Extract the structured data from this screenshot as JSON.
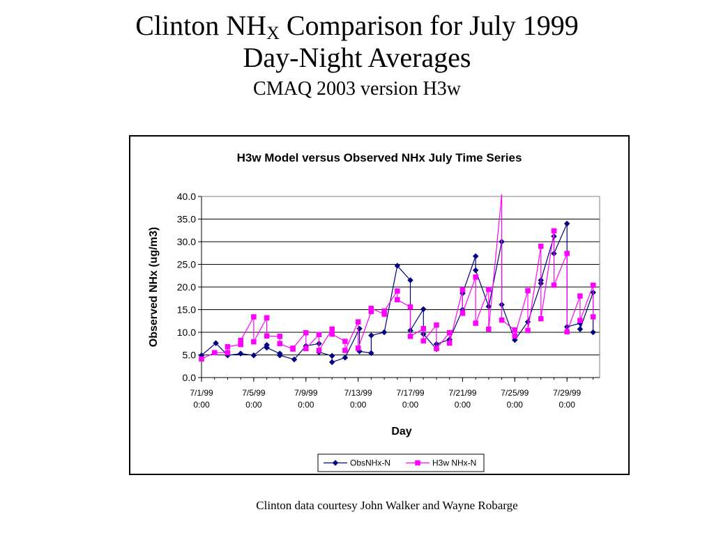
{
  "slide": {
    "title_prefix": "Clinton NH",
    "title_sub": "X",
    "title_suffix": " Comparison for July 1999",
    "subtitle1": "Day-Night Averages",
    "subtitle2": "CMAQ 2003 version H3w",
    "credit": "Clinton data courtesy John Walker and Wayne Robarge"
  },
  "chart_data": {
    "type": "line",
    "title": "H3w Model versus Observed NHx July Time Series",
    "xlabel": "Day",
    "ylabel": "Observed NHx (ug/m3)",
    "ylim": [
      0,
      40
    ],
    "yticks": [
      "0.0",
      "5.0",
      "10.0",
      "15.0",
      "20.0",
      "25.0",
      "30.0",
      "35.0",
      "40.0"
    ],
    "xlim_days": [
      0,
      30.5
    ],
    "xticks": [
      {
        "day": 0,
        "label1": "7/1/99",
        "label2": "0:00"
      },
      {
        "day": 4,
        "label1": "7/5/99",
        "label2": "0:00"
      },
      {
        "day": 8,
        "label1": "7/9/99",
        "label2": "0:00"
      },
      {
        "day": 12,
        "label1": "7/13/99",
        "label2": "0:00"
      },
      {
        "day": 16,
        "label1": "7/17/99",
        "label2": "0:00"
      },
      {
        "day": 20,
        "label1": "7/21/99",
        "label2": "0:00"
      },
      {
        "day": 24,
        "label1": "7/25/99",
        "label2": "0:00"
      },
      {
        "day": 28,
        "label1": "7/29/99",
        "label2": "0:00"
      }
    ],
    "grid": "horizontal",
    "legend_position": "bottom",
    "series": [
      {
        "name": "ObsNHx-N",
        "color": "#000080",
        "marker": "diamond",
        "points": [
          [
            0.0,
            4.9
          ],
          [
            1.1,
            7.6
          ],
          [
            2.0,
            4.9
          ],
          [
            3.0,
            5.3
          ],
          [
            4.0,
            4.9
          ],
          [
            5.0,
            7.2
          ],
          [
            5.0,
            6.6
          ],
          [
            6.0,
            5.3
          ],
          [
            6.0,
            4.9
          ],
          [
            7.1,
            4.0
          ],
          [
            8.0,
            7.0
          ],
          [
            9.0,
            7.5
          ],
          [
            9.0,
            5.6
          ],
          [
            10.0,
            4.8
          ],
          [
            10.0,
            3.4
          ],
          [
            11.0,
            4.4
          ],
          [
            12.1,
            10.8
          ],
          [
            12.1,
            5.8
          ],
          [
            13.0,
            5.4
          ],
          [
            13.0,
            9.3
          ],
          [
            14.0,
            10.0
          ],
          [
            15.0,
            24.7
          ],
          [
            16.0,
            21.5
          ],
          [
            16.0,
            10.4
          ],
          [
            17.0,
            15.1
          ],
          [
            17.0,
            9.6
          ],
          [
            18.0,
            6.3
          ],
          [
            18.0,
            7.4
          ],
          [
            19.0,
            8.4
          ],
          [
            20.0,
            15.0
          ],
          [
            20.0,
            18.6
          ],
          [
            21.0,
            26.8
          ],
          [
            21.0,
            23.7
          ],
          [
            22.0,
            15.7
          ],
          [
            23.0,
            30.0
          ],
          [
            23.0,
            16.1
          ],
          [
            24.0,
            8.3
          ],
          [
            25.0,
            12.3
          ],
          [
            26.0,
            20.8
          ],
          [
            26.0,
            21.5
          ],
          [
            27.0,
            31.2
          ],
          [
            27.0,
            27.4
          ],
          [
            28.0,
            34.0
          ],
          [
            28.0,
            11.2
          ],
          [
            29.0,
            12.0
          ],
          [
            29.0,
            10.7
          ],
          [
            30.0,
            18.8
          ],
          [
            30.0,
            10.0
          ]
        ]
      },
      {
        "name": "H3w NHx-N",
        "color": "#ff00ff",
        "marker": "square",
        "points": [
          [
            0.0,
            4.1
          ],
          [
            1.0,
            5.5
          ],
          [
            2.0,
            5.5
          ],
          [
            2.0,
            6.8
          ],
          [
            3.0,
            7.3
          ],
          [
            3.0,
            8.2
          ],
          [
            4.0,
            13.4
          ],
          [
            4.0,
            7.9
          ],
          [
            5.0,
            13.2
          ],
          [
            5.0,
            9.2
          ],
          [
            6.0,
            9.1
          ],
          [
            6.0,
            7.5
          ],
          [
            7.0,
            6.3
          ],
          [
            7.0,
            6.5
          ],
          [
            8.0,
            9.9
          ],
          [
            8.0,
            6.4
          ],
          [
            9.0,
            9.5
          ],
          [
            9.0,
            6.0
          ],
          [
            10.0,
            10.7
          ],
          [
            10.0,
            9.6
          ],
          [
            11.0,
            8.0
          ],
          [
            11.0,
            6.0
          ],
          [
            12.0,
            12.3
          ],
          [
            12.0,
            6.5
          ],
          [
            13.0,
            14.6
          ],
          [
            13.0,
            15.3
          ],
          [
            14.0,
            14.0
          ],
          [
            14.0,
            14.7
          ],
          [
            15.0,
            19.1
          ],
          [
            15.0,
            17.2
          ],
          [
            16.0,
            15.6
          ],
          [
            16.0,
            9.1
          ],
          [
            17.0,
            10.8
          ],
          [
            17.0,
            8.1
          ],
          [
            18.0,
            11.6
          ],
          [
            18.0,
            6.4
          ],
          [
            19.0,
            9.9
          ],
          [
            19.0,
            7.6
          ],
          [
            20.0,
            19.4
          ],
          [
            20.0,
            14.2
          ],
          [
            21.0,
            22.2
          ],
          [
            21.0,
            12.0
          ],
          [
            22.0,
            19.5
          ],
          [
            22.0,
            10.7
          ],
          [
            23.0,
            40.5
          ],
          [
            23.0,
            12.7
          ],
          [
            24.0,
            10.5
          ],
          [
            24.0,
            9.2
          ],
          [
            25.0,
            19.2
          ],
          [
            25.0,
            10.4
          ],
          [
            26.0,
            29.0
          ],
          [
            26.0,
            13.0
          ],
          [
            27.0,
            32.4
          ],
          [
            27.0,
            20.4
          ],
          [
            28.0,
            27.4
          ],
          [
            28.0,
            10.1
          ],
          [
            29.0,
            18.0
          ],
          [
            29.0,
            12.6
          ],
          [
            30.0,
            20.4
          ],
          [
            30.0,
            13.4
          ]
        ]
      }
    ]
  }
}
